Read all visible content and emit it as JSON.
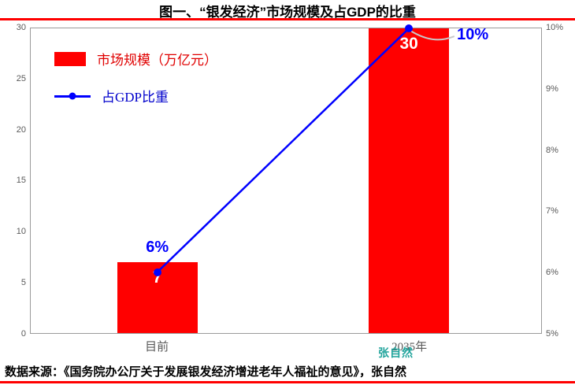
{
  "page": {
    "title": "图一、“银发经济”市场规模及占GDP的比重",
    "source": "数据来源：《国务院办公厅关于发展银发经济增进老年人福祉的意见》，张自然",
    "watermark": "张自然"
  },
  "colors": {
    "bar": "#FF0000",
    "line": "#0000FF",
    "axis_text": "#595959",
    "divider": "#FF0000",
    "watermark": "#1FA39B"
  },
  "chart_data": {
    "type": "bar",
    "subtype": "bar+line combo, dual axis",
    "title": "图一、“银发经济”市场规模及占GDP的比重",
    "categories": [
      "目前",
      "2035年"
    ],
    "series": [
      {
        "name": "市场规模（万亿元）",
        "type": "bar",
        "axis": "left",
        "values": [
          7,
          30
        ],
        "color": "#FF0000"
      },
      {
        "name": "占GDP比重",
        "type": "line",
        "axis": "right",
        "values": [
          6,
          10
        ],
        "labels": [
          "6%",
          "10%"
        ],
        "color": "#0000FF"
      }
    ],
    "bar_labels": [
      "7",
      "30"
    ],
    "left_axis": {
      "min": 0,
      "max": 30,
      "ticks": [
        "30",
        "25",
        "20",
        "15",
        "10",
        "5",
        "0"
      ]
    },
    "right_axis": {
      "min": 5,
      "max": 10,
      "ticks": [
        "10%",
        "9%",
        "8%",
        "7%",
        "6%",
        "5%"
      ]
    },
    "grid": false,
    "legend_position": "top-left"
  }
}
